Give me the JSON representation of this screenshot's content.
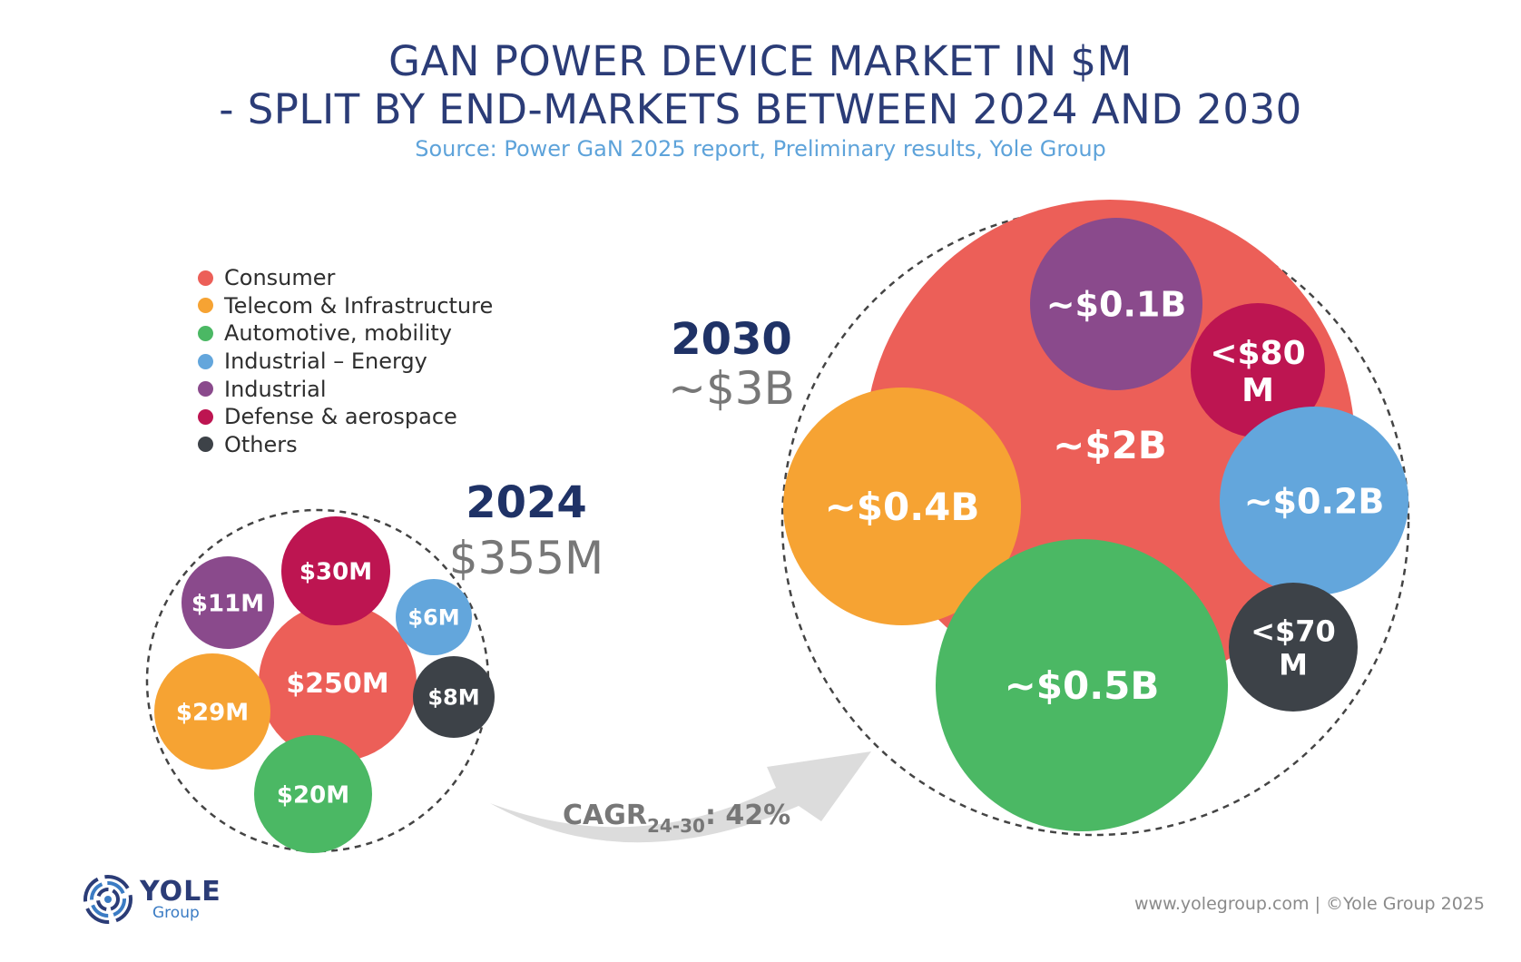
{
  "title_line1": "GAN POWER DEVICE MARKET IN $M",
  "title_line2": "- SPLIT BY END-MARKETS BETWEEN 2024 AND 2030",
  "subtitle": "Source: Power GaN 2025 report, Preliminary results, Yole Group",
  "legend": [
    {
      "label": "Consumer",
      "color": "#ec5f58"
    },
    {
      "label": "Telecom & Infrastructure",
      "color": "#f6a333"
    },
    {
      "label": "Automotive, mobility",
      "color": "#4bb864"
    },
    {
      "label": "Industrial – Energy",
      "color": "#63a6dc"
    },
    {
      "label": "Industrial",
      "color": "#8a4a8c"
    },
    {
      "label": "Defense & aerospace",
      "color": "#bd1551"
    },
    {
      "label": "Others",
      "color": "#3d4248"
    }
  ],
  "chart_data": {
    "type": "bubble",
    "groups": [
      {
        "year": "2024",
        "total_label": "$355M",
        "total_musd": 355,
        "bubbles": [
          {
            "segment": "Consumer",
            "label": "$250M",
            "value_musd": 250
          },
          {
            "segment": "Defense & aerospace",
            "label": "$30M",
            "value_musd": 30
          },
          {
            "segment": "Telecom & Infrastructure",
            "label": "$29M",
            "value_musd": 29
          },
          {
            "segment": "Automotive, mobility",
            "label": "$20M",
            "value_musd": 20
          },
          {
            "segment": "Industrial",
            "label": "$11M",
            "value_musd": 11
          },
          {
            "segment": "Others",
            "label": "$8M",
            "value_musd": 8
          },
          {
            "segment": "Industrial – Energy",
            "label": "$6M",
            "value_musd": 6
          }
        ]
      },
      {
        "year": "2030",
        "total_label": "~$3B",
        "total_musd": 3000,
        "bubbles": [
          {
            "segment": "Consumer",
            "label": "~$2B",
            "value_musd": 2000
          },
          {
            "segment": "Automotive, mobility",
            "label": "~$0.5B",
            "value_musd": 500
          },
          {
            "segment": "Telecom & Infrastructure",
            "label": "~$0.4B",
            "value_musd": 400
          },
          {
            "segment": "Industrial – Energy",
            "label": "~$0.2B",
            "value_musd": 200
          },
          {
            "segment": "Industrial",
            "label": "~$0.1B",
            "value_musd": 100
          },
          {
            "segment": "Defense & aerospace",
            "label": "<$80 M",
            "value_musd": 80
          },
          {
            "segment": "Others",
            "label": "<$70 M",
            "value_musd": 70
          }
        ]
      }
    ],
    "cagr": {
      "prefix": "CAGR",
      "subscript": "24-30",
      "value": ": 42%"
    }
  },
  "logo": {
    "name": "YOLE",
    "sub": "Group"
  },
  "footer": "www.yolegroup.com | ©Yole Group 2025"
}
